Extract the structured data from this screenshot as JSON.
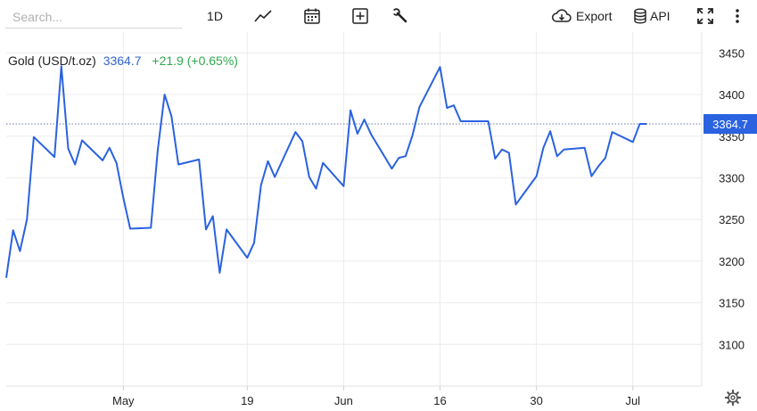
{
  "toolbar": {
    "search_placeholder": "Search...",
    "timeframe_label": "1D",
    "export_label": "Export",
    "api_label": "API",
    "icons": [
      "line-chart-icon",
      "calendar-icon",
      "plus-box-icon",
      "wrench-icon",
      "cloud-download-icon",
      "database-icon",
      "expand-icon",
      "more-vert-icon",
      "gear-icon"
    ]
  },
  "info": {
    "name": "Gold (USD/t.oz)",
    "price": "3364.7",
    "change": "+21.9 (+0.65%)"
  },
  "colors": {
    "line": "#2a62e0",
    "price_text": "#3366cc",
    "change_text": "#2fa84f",
    "price_tag_bg": "#2a62e0",
    "grid": "#ececec"
  },
  "chart_data": {
    "type": "line",
    "title": "",
    "xlabel": "",
    "ylabel": "",
    "ylim": [
      3050,
      3475
    ],
    "yticks": [
      3100,
      3150,
      3200,
      3250,
      3300,
      3350,
      3400,
      3450
    ],
    "x_tick_labels": [
      "May",
      "19",
      "Jun",
      "16",
      "30",
      "Jul"
    ],
    "x_tick_dates": [
      "2025-05-01",
      "2025-05-19",
      "2025-06-02",
      "2025-06-16",
      "2025-06-30",
      "2025-07-14"
    ],
    "x_range": [
      "2025-04-14",
      "2025-07-24"
    ],
    "last_value": 3364.7,
    "last_value_label": "3364.7",
    "grid": true,
    "series": [
      {
        "x": [
          "2025-04-14",
          "2025-04-15",
          "2025-04-16",
          "2025-04-17",
          "2025-04-18",
          "2025-04-21",
          "2025-04-22",
          "2025-04-23",
          "2025-04-24",
          "2025-04-25",
          "2025-04-28",
          "2025-04-29",
          "2025-04-30",
          "2025-05-01",
          "2025-05-02",
          "2025-05-05",
          "2025-05-06",
          "2025-05-07",
          "2025-05-08",
          "2025-05-09",
          "2025-05-12",
          "2025-05-13",
          "2025-05-14",
          "2025-05-15",
          "2025-05-16",
          "2025-05-19",
          "2025-05-20",
          "2025-05-21",
          "2025-05-22",
          "2025-05-23",
          "2025-05-26",
          "2025-05-27",
          "2025-05-28",
          "2025-05-29",
          "2025-05-30",
          "2025-06-02",
          "2025-06-03",
          "2025-06-04",
          "2025-06-05",
          "2025-06-06",
          "2025-06-09",
          "2025-06-10",
          "2025-06-11",
          "2025-06-12",
          "2025-06-13",
          "2025-06-16",
          "2025-06-17",
          "2025-06-18",
          "2025-06-19",
          "2025-06-20",
          "2025-06-23",
          "2025-06-24",
          "2025-06-25",
          "2025-06-26",
          "2025-06-27",
          "2025-06-30",
          "2025-07-01",
          "2025-07-02",
          "2025-07-03",
          "2025-07-04",
          "2025-07-07",
          "2025-07-08",
          "2025-07-09",
          "2025-07-10",
          "2025-07-11",
          "2025-07-14",
          "2025-07-15",
          "2025-07-16"
        ],
        "values": [
          3180,
          3237,
          3212,
          3250,
          3349,
          3325,
          3434,
          3335,
          3316,
          3345,
          3321,
          3336,
          3318,
          3276,
          3239,
          3240,
          3333,
          3400,
          3374,
          3316,
          3322,
          3238,
          3254,
          3186,
          3238,
          3204,
          3222,
          3291,
          3320,
          3301,
          3355,
          3344,
          3301,
          3287,
          3318,
          3290,
          3381,
          3353,
          3370,
          3352,
          3311,
          3324,
          3326,
          3351,
          3385,
          3433,
          3384,
          3387,
          3368,
          3368,
          3368,
          3323,
          3334,
          3330,
          3268,
          3302,
          3336,
          3356,
          3326,
          3334,
          3336,
          3302,
          3314,
          3324,
          3355,
          3343,
          3364.7,
          3364.7
        ]
      }
    ]
  }
}
